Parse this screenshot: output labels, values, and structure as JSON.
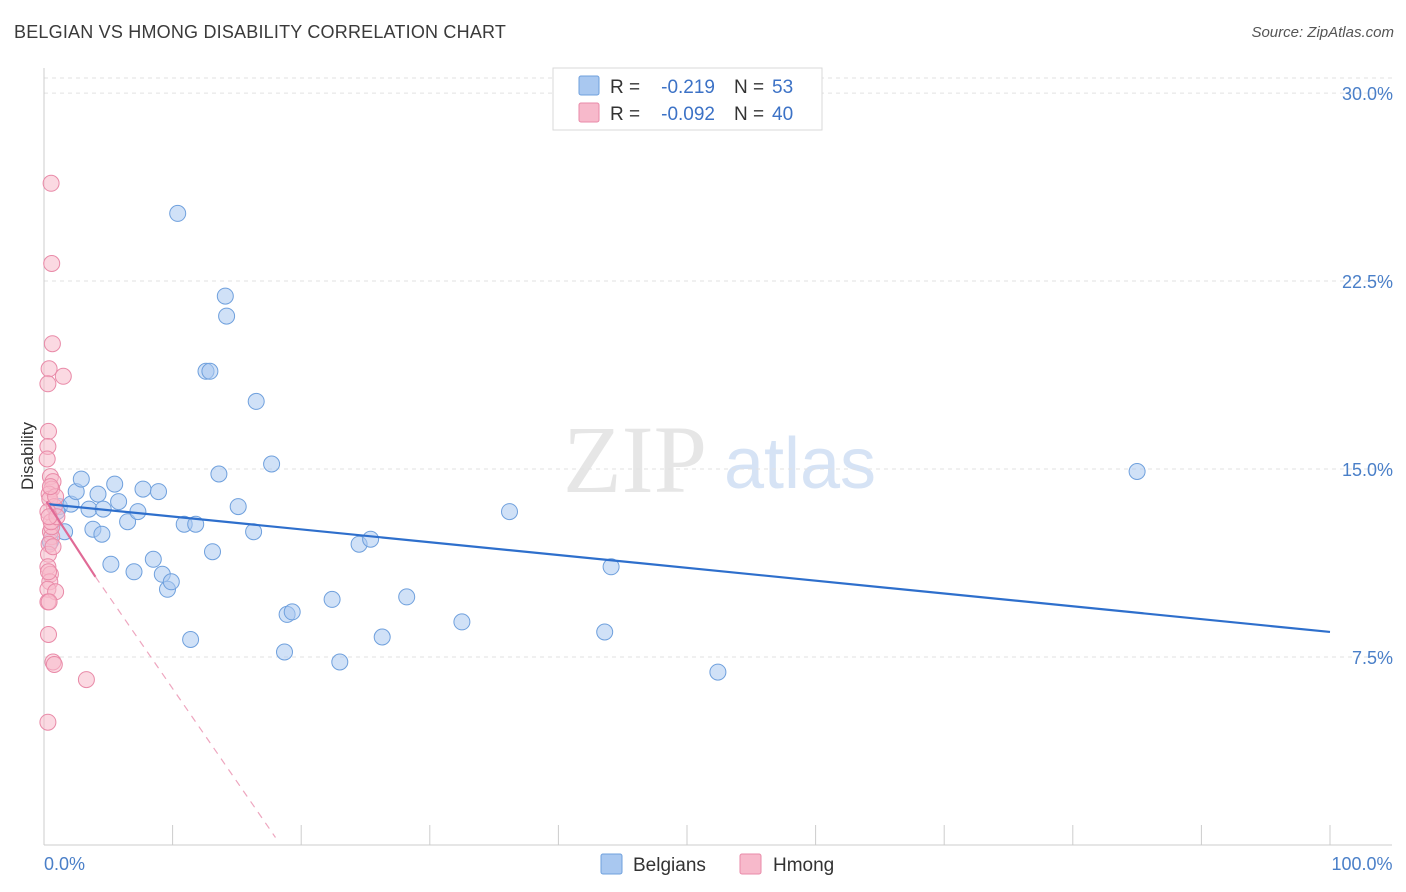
{
  "title": "BELGIAN VS HMONG DISABILITY CORRELATION CHART",
  "source": "Source: ZipAtlas.com",
  "watermark": {
    "zip": "ZIP",
    "atlas": "atlas"
  },
  "legend": {
    "rows": [
      {
        "r_label": "R =",
        "r_value": "-0.219",
        "n_label": "N =",
        "n_value": "53",
        "color": "#a9c8f0",
        "stroke": "#6fa0dd"
      },
      {
        "r_label": "R =",
        "r_value": "-0.092",
        "n_label": "N =",
        "n_value": "40",
        "color": "#f7b9cb",
        "stroke": "#e98aa8"
      }
    ]
  },
  "chart_data": {
    "type": "scatter",
    "title": "BELGIAN VS HMONG DISABILITY CORRELATION CHART",
    "ylabel": "Disability",
    "xlabel": "",
    "xlim": [
      0,
      100
    ],
    "ylim": [
      0,
      31
    ],
    "x_tick_labels": [
      {
        "v": 0,
        "label": "0.0%"
      },
      {
        "v": 100,
        "label": "100.0%"
      }
    ],
    "y_ticks": [
      {
        "v": 7.5,
        "label": "7.5%"
      },
      {
        "v": 15.0,
        "label": "15.0%"
      },
      {
        "v": 22.5,
        "label": "22.5%"
      },
      {
        "v": 30.0,
        "label": "30.0%"
      }
    ],
    "series": [
      {
        "name": "Belgians",
        "color": "#a9c8f0",
        "stroke": "#6fa0dd",
        "line_color": "#2e6fcc",
        "trend": {
          "x0": 0.3,
          "y0": 13.6,
          "x1": 100,
          "y1": 8.5
        },
        "points": [
          [
            0.5,
            12.1
          ],
          [
            1.2,
            13.5
          ],
          [
            1.6,
            12.5
          ],
          [
            2.1,
            13.6
          ],
          [
            2.5,
            14.1
          ],
          [
            2.9,
            14.6
          ],
          [
            3.5,
            13.4
          ],
          [
            3.8,
            12.6
          ],
          [
            4.2,
            14.0
          ],
          [
            4.5,
            12.4
          ],
          [
            4.6,
            13.4
          ],
          [
            5.2,
            11.2
          ],
          [
            5.5,
            14.4
          ],
          [
            5.8,
            13.7
          ],
          [
            6.5,
            12.9
          ],
          [
            7.0,
            10.9
          ],
          [
            7.3,
            13.3
          ],
          [
            7.7,
            14.2
          ],
          [
            8.5,
            11.4
          ],
          [
            8.9,
            14.1
          ],
          [
            9.2,
            10.8
          ],
          [
            9.6,
            10.2
          ],
          [
            9.9,
            10.5
          ],
          [
            10.4,
            25.2
          ],
          [
            10.9,
            12.8
          ],
          [
            11.4,
            8.2
          ],
          [
            11.8,
            12.8
          ],
          [
            12.6,
            18.9
          ],
          [
            12.9,
            18.9
          ],
          [
            13.1,
            11.7
          ],
          [
            13.6,
            14.8
          ],
          [
            14.1,
            21.9
          ],
          [
            14.2,
            21.1
          ],
          [
            15.1,
            13.5
          ],
          [
            16.3,
            12.5
          ],
          [
            16.5,
            17.7
          ],
          [
            17.7,
            15.2
          ],
          [
            18.7,
            7.7
          ],
          [
            18.9,
            9.2
          ],
          [
            19.3,
            9.3
          ],
          [
            22.4,
            9.8
          ],
          [
            23.0,
            7.3
          ],
          [
            24.5,
            12.0
          ],
          [
            25.4,
            12.2
          ],
          [
            26.3,
            8.3
          ],
          [
            28.2,
            9.9
          ],
          [
            32.5,
            8.9
          ],
          [
            36.2,
            13.3
          ],
          [
            43.6,
            8.5
          ],
          [
            44.1,
            11.1
          ],
          [
            52.4,
            6.9
          ],
          [
            85.0,
            14.9
          ],
          [
            1.0,
            13.3
          ]
        ]
      },
      {
        "name": "Hmong",
        "color": "#f7b9cb",
        "stroke": "#e98aa8",
        "line_color": "#e06a96",
        "trend": {
          "x0": 0.2,
          "y0": 13.7,
          "x1": 4.0,
          "y1": 10.7
        },
        "trend_ext": {
          "x0": 4.0,
          "y0": 10.7,
          "x1": 18.0,
          "y1": 0.3
        },
        "points": [
          [
            0.55,
            26.4
          ],
          [
            0.6,
            23.2
          ],
          [
            0.65,
            20.0
          ],
          [
            0.4,
            19.0
          ],
          [
            0.3,
            18.4
          ],
          [
            1.5,
            18.7
          ],
          [
            0.35,
            16.5
          ],
          [
            0.3,
            15.9
          ],
          [
            0.25,
            15.4
          ],
          [
            0.5,
            14.7
          ],
          [
            0.7,
            14.5
          ],
          [
            0.6,
            14.2
          ],
          [
            0.4,
            14.0
          ],
          [
            0.45,
            13.8
          ],
          [
            0.8,
            13.5
          ],
          [
            0.9,
            13.9
          ],
          [
            0.3,
            13.3
          ],
          [
            0.5,
            12.5
          ],
          [
            0.6,
            12.3
          ],
          [
            0.4,
            12.0
          ],
          [
            0.35,
            11.6
          ],
          [
            0.3,
            11.1
          ],
          [
            0.5,
            10.8
          ],
          [
            0.45,
            10.5
          ],
          [
            0.3,
            10.2
          ],
          [
            0.9,
            10.1
          ],
          [
            0.3,
            9.7
          ],
          [
            0.4,
            9.7
          ],
          [
            0.35,
            8.4
          ],
          [
            0.7,
            7.3
          ],
          [
            0.8,
            7.2
          ],
          [
            3.3,
            6.6
          ],
          [
            0.3,
            4.9
          ],
          [
            0.6,
            12.7
          ],
          [
            0.55,
            12.9
          ],
          [
            1.0,
            13.1
          ],
          [
            0.7,
            11.9
          ],
          [
            0.35,
            10.9
          ],
          [
            0.5,
            14.3
          ],
          [
            0.4,
            13.1
          ]
        ]
      }
    ],
    "legend_position": "top-center",
    "grid": true
  }
}
